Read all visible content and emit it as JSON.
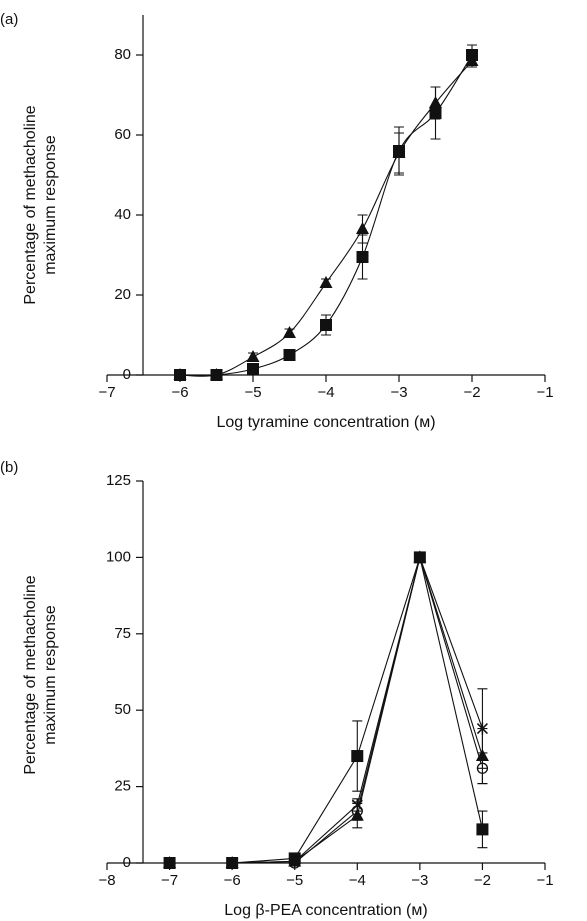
{
  "chart_data": [
    {
      "type": "line",
      "label": "(a)",
      "smooth": true,
      "ylabel": [
        "Percentage of methacholine",
        "maximum response"
      ],
      "xlabel": "Log tyramine concentration (ᴍ)",
      "xlim": [
        -7,
        -1
      ],
      "xticks": [
        {
          "value": -7,
          "label": "−7"
        },
        {
          "value": -6,
          "label": "−6"
        },
        {
          "value": -5,
          "label": "−5"
        },
        {
          "value": -4,
          "label": "−4"
        },
        {
          "value": -3,
          "label": "−3"
        },
        {
          "value": -2,
          "label": "−2"
        },
        {
          "value": -1,
          "label": "−1"
        }
      ],
      "ylim": [
        0,
        90
      ],
      "yticks": [
        0,
        20,
        40,
        60,
        80
      ],
      "x": [
        -6,
        -5.5,
        -5,
        -4.5,
        -4,
        -3.5,
        -3,
        -2.5,
        -2
      ],
      "series": [
        {
          "marker": "square",
          "color": "#111111",
          "values": [
            0,
            0,
            1.5,
            5,
            12.5,
            29.5,
            56,
            65.5,
            80
          ],
          "errors": [
            0,
            0,
            1,
            1,
            2.5,
            5.5,
            6,
            6.5,
            2.5
          ]
        },
        {
          "marker": "triangle",
          "color": "#111111",
          "values": [
            0,
            0,
            4.5,
            10.5,
            23,
            36.5,
            55.5,
            68,
            78.5
          ],
          "errors": [
            0,
            0,
            1,
            1,
            1,
            3.5,
            5,
            4,
            1.5
          ]
        }
      ]
    },
    {
      "type": "line",
      "label": "(b)",
      "smooth": false,
      "ylabel": [
        "Percentage of methacholine",
        "maximum response"
      ],
      "xlabel": "Log β-PEA concentration (ᴍ)",
      "xlim": [
        -8,
        -1
      ],
      "xticks": [
        {
          "value": -8,
          "label": "−8"
        },
        {
          "value": -7,
          "label": "−7"
        },
        {
          "value": -6,
          "label": "−6"
        },
        {
          "value": -5,
          "label": "−5"
        },
        {
          "value": -4,
          "label": "−4"
        },
        {
          "value": -3,
          "label": "−3"
        },
        {
          "value": -2,
          "label": "−2"
        },
        {
          "value": -1,
          "label": "−1"
        }
      ],
      "ylim": [
        0,
        125
      ],
      "yticks": [
        0,
        25,
        50,
        75,
        100,
        125
      ],
      "x": [
        -7,
        -6,
        -5,
        -4,
        -3,
        -2
      ],
      "series": [
        {
          "marker": "circle",
          "color": "#111111",
          "values": [
            0,
            0,
            0,
            17,
            100,
            31
          ],
          "errors": [
            0,
            0,
            0,
            3,
            0,
            5
          ]
        },
        {
          "marker": "triangle",
          "color": "#111111",
          "values": [
            0,
            0,
            0.5,
            15.5,
            100,
            35
          ],
          "errors": [
            0,
            0,
            0,
            4,
            0,
            9
          ]
        },
        {
          "marker": "star",
          "color": "#111111",
          "values": [
            0,
            0,
            0.5,
            19,
            100,
            44
          ],
          "errors": [
            0,
            0,
            0,
            2,
            0,
            13
          ]
        },
        {
          "marker": "square",
          "color": "#111111",
          "values": [
            0,
            0,
            1.5,
            35,
            100,
            11
          ],
          "errors": [
            0,
            0,
            0,
            11.5,
            0,
            6
          ]
        }
      ]
    }
  ]
}
